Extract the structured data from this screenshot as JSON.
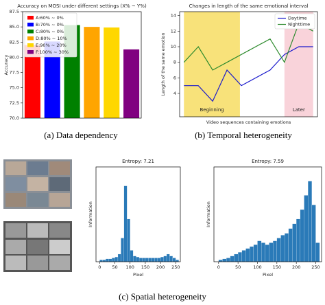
{
  "chart_data": [
    {
      "type": "bar",
      "title": "Accuracy on MOSI under different settings (X% ~ Y%)",
      "y_label": "Accuracy",
      "caption": "(a) Data dependency",
      "categories": [
        "A:60% ~ 0%",
        "B:70% ~ 0%",
        "C:80% ~ 0%",
        "D:80% ~ 10%",
        "E:90% ~ 20%",
        "F:100% ~ 30%"
      ],
      "values": [
        82.0,
        82.6,
        85.3,
        85.0,
        84.9,
        81.3
      ],
      "colors": [
        "#ff0000",
        "#0000ff",
        "#008000",
        "#ffa500",
        "#ffd700",
        "#800080"
      ],
      "ylim": [
        70,
        87.5
      ],
      "yticks": [
        {
          "value": 70,
          "label": "70.0"
        },
        72.5,
        {
          "value": 75,
          "label": "75.0"
        },
        77.5,
        {
          "value": 80,
          "label": "80.0"
        },
        82.5,
        {
          "value": 85,
          "label": "85.0"
        },
        87.5
      ],
      "legend": "upper left"
    },
    {
      "type": "line",
      "title": "Changes in length of the same emotional interval",
      "x_label": "Video sequences containing emotions",
      "y_label": "Length of the same emotion",
      "caption": "(b) Temporal heterogeneity",
      "x": [
        0,
        1,
        2,
        3,
        4,
        6,
        7,
        8,
        9
      ],
      "series": [
        {
          "name": "Daytime",
          "color": "#1a1acc",
          "values": [
            5,
            5,
            3,
            7,
            5,
            7,
            9,
            10,
            10
          ]
        },
        {
          "name": "Nighttime",
          "color": "#2e8b2e",
          "values": [
            8,
            10,
            7,
            8,
            9,
            11,
            8,
            13,
            12
          ]
        }
      ],
      "spans": [
        {
          "x0": 0,
          "x1": 3.9,
          "color": "#f8e27a",
          "label": "Beginning"
        },
        {
          "x0": 7,
          "x1": 9,
          "color": "#f9d3da",
          "label": "Later"
        }
      ],
      "xlim": [
        -0.3,
        9.3
      ],
      "ylim": [
        1,
        14.5
      ],
      "yticks": [
        4,
        6,
        8,
        10,
        12,
        14
      ],
      "legend": "upper right"
    },
    {
      "type": "histogram",
      "title": "Entropy: 7.21",
      "x_label": "Pixel",
      "y_label": "Information",
      "color": "#2a7ab8",
      "bins": [
        0,
        10,
        20,
        30,
        40,
        50,
        60,
        70,
        80,
        90,
        100,
        110,
        120,
        130,
        140,
        150,
        160,
        170,
        180,
        190,
        200,
        210,
        220,
        230,
        240,
        250,
        260
      ],
      "values": [
        2,
        2,
        3,
        3,
        4,
        5,
        8,
        25,
        80,
        45,
        12,
        6,
        5,
        4,
        4,
        4,
        4,
        4,
        4,
        4,
        5,
        6,
        8,
        6,
        4,
        2
      ],
      "xlim": [
        -12,
        265
      ],
      "ylim": [
        0,
        100
      ],
      "xticks": [
        0,
        50,
        100,
        150,
        200,
        250
      ]
    },
    {
      "type": "histogram",
      "title": "Entropy: 7.59",
      "x_label": "Pixel",
      "y_label": "Information",
      "color": "#2a7ab8",
      "bins": [
        0,
        10,
        20,
        30,
        40,
        50,
        60,
        70,
        80,
        90,
        100,
        110,
        120,
        130,
        140,
        150,
        160,
        170,
        180,
        190,
        200,
        210,
        220,
        230,
        240,
        250,
        260
      ],
      "values": [
        2,
        3,
        4,
        6,
        8,
        10,
        12,
        14,
        16,
        18,
        22,
        20,
        18,
        20,
        22,
        25,
        28,
        30,
        35,
        40,
        45,
        55,
        70,
        85,
        60,
        20
      ],
      "xlim": [
        -12,
        265
      ],
      "ylim": [
        0,
        100
      ],
      "xticks": [
        0,
        50,
        100,
        150,
        200,
        250
      ]
    }
  ],
  "figure_caption": "(c) Spatial heterogeneity"
}
